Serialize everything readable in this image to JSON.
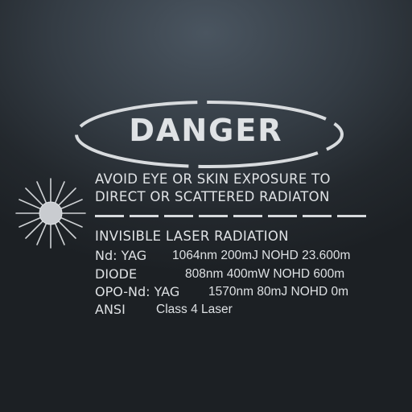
{
  "sign": {
    "title": "DANGER",
    "warning_lines": [
      "AVOID EYE OR SKIN EXPOSURE TO",
      "DIRECT OR  SCATTERED RADIATON"
    ],
    "radiation_type": "INVISIBLE  LASER RADIATION",
    "specs": [
      {
        "label": "Nd: YAG",
        "spec": "1064nm  200mJ  NOHD  23.600m"
      },
      {
        "label": "DIODE",
        "spec": "808nm  400mW  NOHD 600m"
      },
      {
        "label": "OPO-Nd: YAG",
        "spec": "1570nm 80mJ NOHD 0m"
      },
      {
        "label": "ANSI",
        "spec": "Class 4 Laser"
      }
    ],
    "icons": {
      "oval": "oval-frame-icon",
      "laser": "laser-starburst-icon"
    },
    "colors": {
      "background": "#2b3137",
      "stencil": "#dcdfe2"
    }
  }
}
